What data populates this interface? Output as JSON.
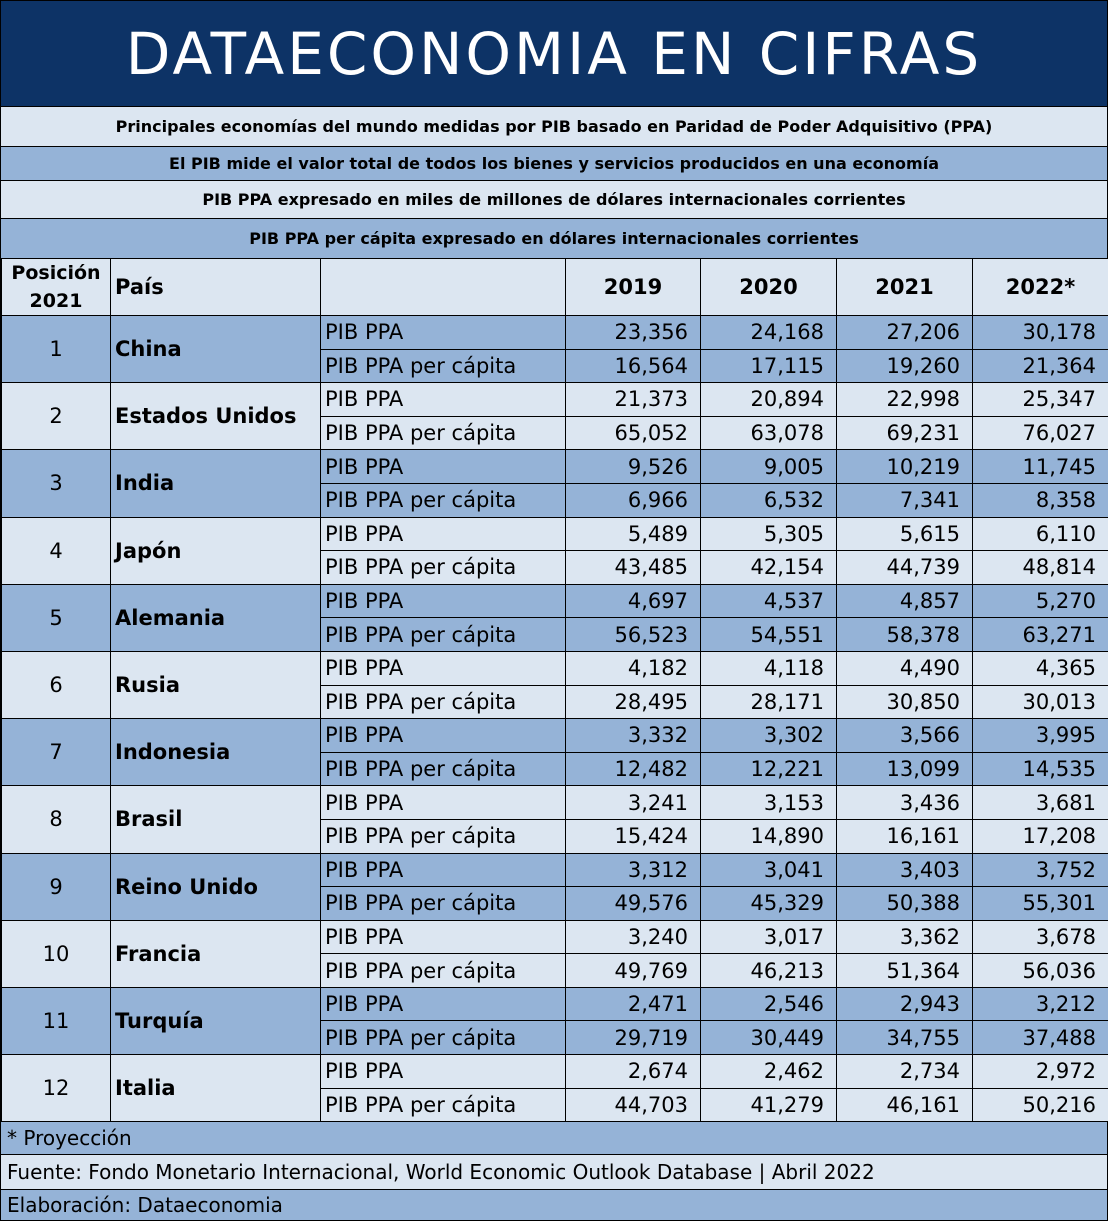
{
  "banner": {
    "title": "DATAECONOMIA EN CIFRAS"
  },
  "bands": [
    "Principales economías del mundo medidas por PIB basado en Paridad de Poder Adquisitivo (PPA)",
    "El PIB mide el valor total de todos los bienes y servicios producidos en una economía",
    "PIB PPA expresado en miles de millones de dólares internacionales corrientes",
    "PIB PPA per cápita expresado en dólares internacionales corrientes"
  ],
  "table": {
    "header": {
      "position_line1": "Posición",
      "position_line2": "2021",
      "country": "País",
      "metric": "",
      "years": [
        "2019",
        "2020",
        "2021",
        "2022*"
      ]
    },
    "metric_labels": [
      "PIB PPA",
      "PIB PPA per cápita"
    ],
    "rows": [
      {
        "pos": "1",
        "country": "China",
        "ppa": [
          "23,356",
          "24,168",
          "27,206",
          "30,178"
        ],
        "pc": [
          "16,564",
          "17,115",
          "19,260",
          "21,364"
        ]
      },
      {
        "pos": "2",
        "country": "Estados Unidos",
        "ppa": [
          "21,373",
          "20,894",
          "22,998",
          "25,347"
        ],
        "pc": [
          "65,052",
          "63,078",
          "69,231",
          "76,027"
        ]
      },
      {
        "pos": "3",
        "country": "India",
        "ppa": [
          "9,526",
          "9,005",
          "10,219",
          "11,745"
        ],
        "pc": [
          "6,966",
          "6,532",
          "7,341",
          "8,358"
        ]
      },
      {
        "pos": "4",
        "country": "Japón",
        "ppa": [
          "5,489",
          "5,305",
          "5,615",
          "6,110"
        ],
        "pc": [
          "43,485",
          "42,154",
          "44,739",
          "48,814"
        ]
      },
      {
        "pos": "5",
        "country": "Alemania",
        "ppa": [
          "4,697",
          "4,537",
          "4,857",
          "5,270"
        ],
        "pc": [
          "56,523",
          "54,551",
          "58,378",
          "63,271"
        ]
      },
      {
        "pos": "6",
        "country": "Rusia",
        "ppa": [
          "4,182",
          "4,118",
          "4,490",
          "4,365"
        ],
        "pc": [
          "28,495",
          "28,171",
          "30,850",
          "30,013"
        ]
      },
      {
        "pos": "7",
        "country": "Indonesia",
        "ppa": [
          "3,332",
          "3,302",
          "3,566",
          "3,995"
        ],
        "pc": [
          "12,482",
          "12,221",
          "13,099",
          "14,535"
        ]
      },
      {
        "pos": "8",
        "country": "Brasil",
        "ppa": [
          "3,241",
          "3,153",
          "3,436",
          "3,681"
        ],
        "pc": [
          "15,424",
          "14,890",
          "16,161",
          "17,208"
        ]
      },
      {
        "pos": "9",
        "country": "Reino Unido",
        "ppa": [
          "3,312",
          "3,041",
          "3,403",
          "3,752"
        ],
        "pc": [
          "49,576",
          "45,329",
          "50,388",
          "55,301"
        ]
      },
      {
        "pos": "10",
        "country": "Francia",
        "ppa": [
          "3,240",
          "3,017",
          "3,362",
          "3,678"
        ],
        "pc": [
          "49,769",
          "46,213",
          "51,364",
          "56,036"
        ]
      },
      {
        "pos": "11",
        "country": "Turquía",
        "ppa": [
          "2,471",
          "2,546",
          "2,943",
          "3,212"
        ],
        "pc": [
          "29,719",
          "30,449",
          "34,755",
          "37,488"
        ]
      },
      {
        "pos": "12",
        "country": "Italia",
        "ppa": [
          "2,674",
          "2,462",
          "2,734",
          "2,972"
        ],
        "pc": [
          "44,703",
          "41,279",
          "46,161",
          "50,216"
        ]
      }
    ]
  },
  "footer": {
    "note": "* Proyección",
    "source": "Fuente: Fondo Monetario Internacional, World Economic Outlook Database | Abril 2022",
    "credit": "Elaboración: Dataeconomia"
  },
  "colors": {
    "banner": "#0d3366",
    "light": "#dce6f1",
    "dark": "#95b3d7"
  }
}
